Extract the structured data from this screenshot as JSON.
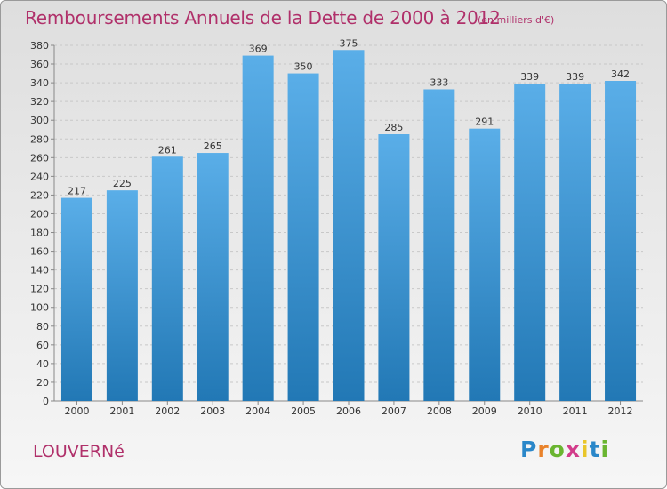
{
  "title": "Remboursements Annuels de la Dette de 2000 à 2012",
  "subtitle": "(en milliers d'€)",
  "commune": "LOUVERNé",
  "logo": {
    "letters": [
      "P",
      "r",
      "o",
      "x",
      "i",
      "t",
      "i"
    ],
    "colors": [
      "#2a87c9",
      "#e9822a",
      "#6ab530",
      "#d23c8a",
      "#e9c62a",
      "#2a87c9",
      "#6ab530"
    ]
  },
  "colors": {
    "accent": "#b0306a",
    "bar_top": "#5aaee8",
    "bar_bottom": "#2278b5"
  },
  "chart_data": {
    "type": "bar",
    "categories": [
      "2000",
      "2001",
      "2002",
      "2003",
      "2004",
      "2005",
      "2006",
      "2007",
      "2008",
      "2009",
      "2010",
      "2011",
      "2012"
    ],
    "values": [
      217,
      225,
      261,
      265,
      369,
      350,
      375,
      285,
      333,
      291,
      339,
      339,
      342
    ],
    "ylim": [
      0,
      380
    ],
    "yticks": [
      0,
      20,
      40,
      60,
      80,
      100,
      120,
      140,
      160,
      180,
      200,
      220,
      240,
      260,
      280,
      300,
      320,
      340,
      360,
      380
    ],
    "grid": true,
    "xlabel": "",
    "ylabel": ""
  }
}
